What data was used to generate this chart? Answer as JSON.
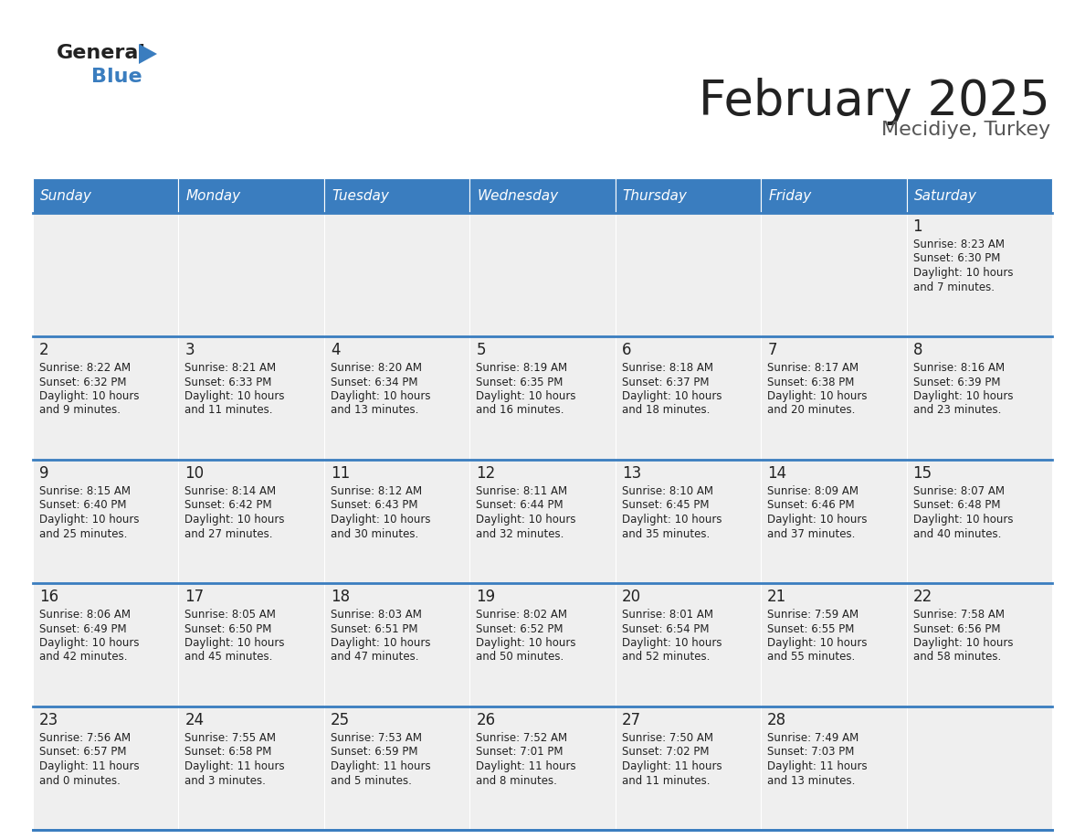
{
  "title": "February 2025",
  "subtitle": "Mecidiye, Turkey",
  "days_of_week": [
    "Sunday",
    "Monday",
    "Tuesday",
    "Wednesday",
    "Thursday",
    "Friday",
    "Saturday"
  ],
  "header_bg": "#3a7dbf",
  "header_text": "#ffffff",
  "cell_bg": "#efefef",
  "border_color": "#3a7dbf",
  "title_color": "#222222",
  "subtitle_color": "#555555",
  "text_color": "#222222",
  "calendar_data": [
    [
      null,
      null,
      null,
      null,
      null,
      null,
      {
        "day": 1,
        "sunrise": "8:23 AM",
        "sunset": "6:30 PM",
        "daylight": "10 hours and 7 minutes"
      }
    ],
    [
      {
        "day": 2,
        "sunrise": "8:22 AM",
        "sunset": "6:32 PM",
        "daylight": "10 hours and 9 minutes"
      },
      {
        "day": 3,
        "sunrise": "8:21 AM",
        "sunset": "6:33 PM",
        "daylight": "10 hours and 11 minutes"
      },
      {
        "day": 4,
        "sunrise": "8:20 AM",
        "sunset": "6:34 PM",
        "daylight": "10 hours and 13 minutes"
      },
      {
        "day": 5,
        "sunrise": "8:19 AM",
        "sunset": "6:35 PM",
        "daylight": "10 hours and 16 minutes"
      },
      {
        "day": 6,
        "sunrise": "8:18 AM",
        "sunset": "6:37 PM",
        "daylight": "10 hours and 18 minutes"
      },
      {
        "day": 7,
        "sunrise": "8:17 AM",
        "sunset": "6:38 PM",
        "daylight": "10 hours and 20 minutes"
      },
      {
        "day": 8,
        "sunrise": "8:16 AM",
        "sunset": "6:39 PM",
        "daylight": "10 hours and 23 minutes"
      }
    ],
    [
      {
        "day": 9,
        "sunrise": "8:15 AM",
        "sunset": "6:40 PM",
        "daylight": "10 hours and 25 minutes"
      },
      {
        "day": 10,
        "sunrise": "8:14 AM",
        "sunset": "6:42 PM",
        "daylight": "10 hours and 27 minutes"
      },
      {
        "day": 11,
        "sunrise": "8:12 AM",
        "sunset": "6:43 PM",
        "daylight": "10 hours and 30 minutes"
      },
      {
        "day": 12,
        "sunrise": "8:11 AM",
        "sunset": "6:44 PM",
        "daylight": "10 hours and 32 minutes"
      },
      {
        "day": 13,
        "sunrise": "8:10 AM",
        "sunset": "6:45 PM",
        "daylight": "10 hours and 35 minutes"
      },
      {
        "day": 14,
        "sunrise": "8:09 AM",
        "sunset": "6:46 PM",
        "daylight": "10 hours and 37 minutes"
      },
      {
        "day": 15,
        "sunrise": "8:07 AM",
        "sunset": "6:48 PM",
        "daylight": "10 hours and 40 minutes"
      }
    ],
    [
      {
        "day": 16,
        "sunrise": "8:06 AM",
        "sunset": "6:49 PM",
        "daylight": "10 hours and 42 minutes"
      },
      {
        "day": 17,
        "sunrise": "8:05 AM",
        "sunset": "6:50 PM",
        "daylight": "10 hours and 45 minutes"
      },
      {
        "day": 18,
        "sunrise": "8:03 AM",
        "sunset": "6:51 PM",
        "daylight": "10 hours and 47 minutes"
      },
      {
        "day": 19,
        "sunrise": "8:02 AM",
        "sunset": "6:52 PM",
        "daylight": "10 hours and 50 minutes"
      },
      {
        "day": 20,
        "sunrise": "8:01 AM",
        "sunset": "6:54 PM",
        "daylight": "10 hours and 52 minutes"
      },
      {
        "day": 21,
        "sunrise": "7:59 AM",
        "sunset": "6:55 PM",
        "daylight": "10 hours and 55 minutes"
      },
      {
        "day": 22,
        "sunrise": "7:58 AM",
        "sunset": "6:56 PM",
        "daylight": "10 hours and 58 minutes"
      }
    ],
    [
      {
        "day": 23,
        "sunrise": "7:56 AM",
        "sunset": "6:57 PM",
        "daylight": "11 hours and 0 minutes"
      },
      {
        "day": 24,
        "sunrise": "7:55 AM",
        "sunset": "6:58 PM",
        "daylight": "11 hours and 3 minutes"
      },
      {
        "day": 25,
        "sunrise": "7:53 AM",
        "sunset": "6:59 PM",
        "daylight": "11 hours and 5 minutes"
      },
      {
        "day": 26,
        "sunrise": "7:52 AM",
        "sunset": "7:01 PM",
        "daylight": "11 hours and 8 minutes"
      },
      {
        "day": 27,
        "sunrise": "7:50 AM",
        "sunset": "7:02 PM",
        "daylight": "11 hours and 11 minutes"
      },
      {
        "day": 28,
        "sunrise": "7:49 AM",
        "sunset": "7:03 PM",
        "daylight": "11 hours and 13 minutes"
      },
      null
    ]
  ]
}
